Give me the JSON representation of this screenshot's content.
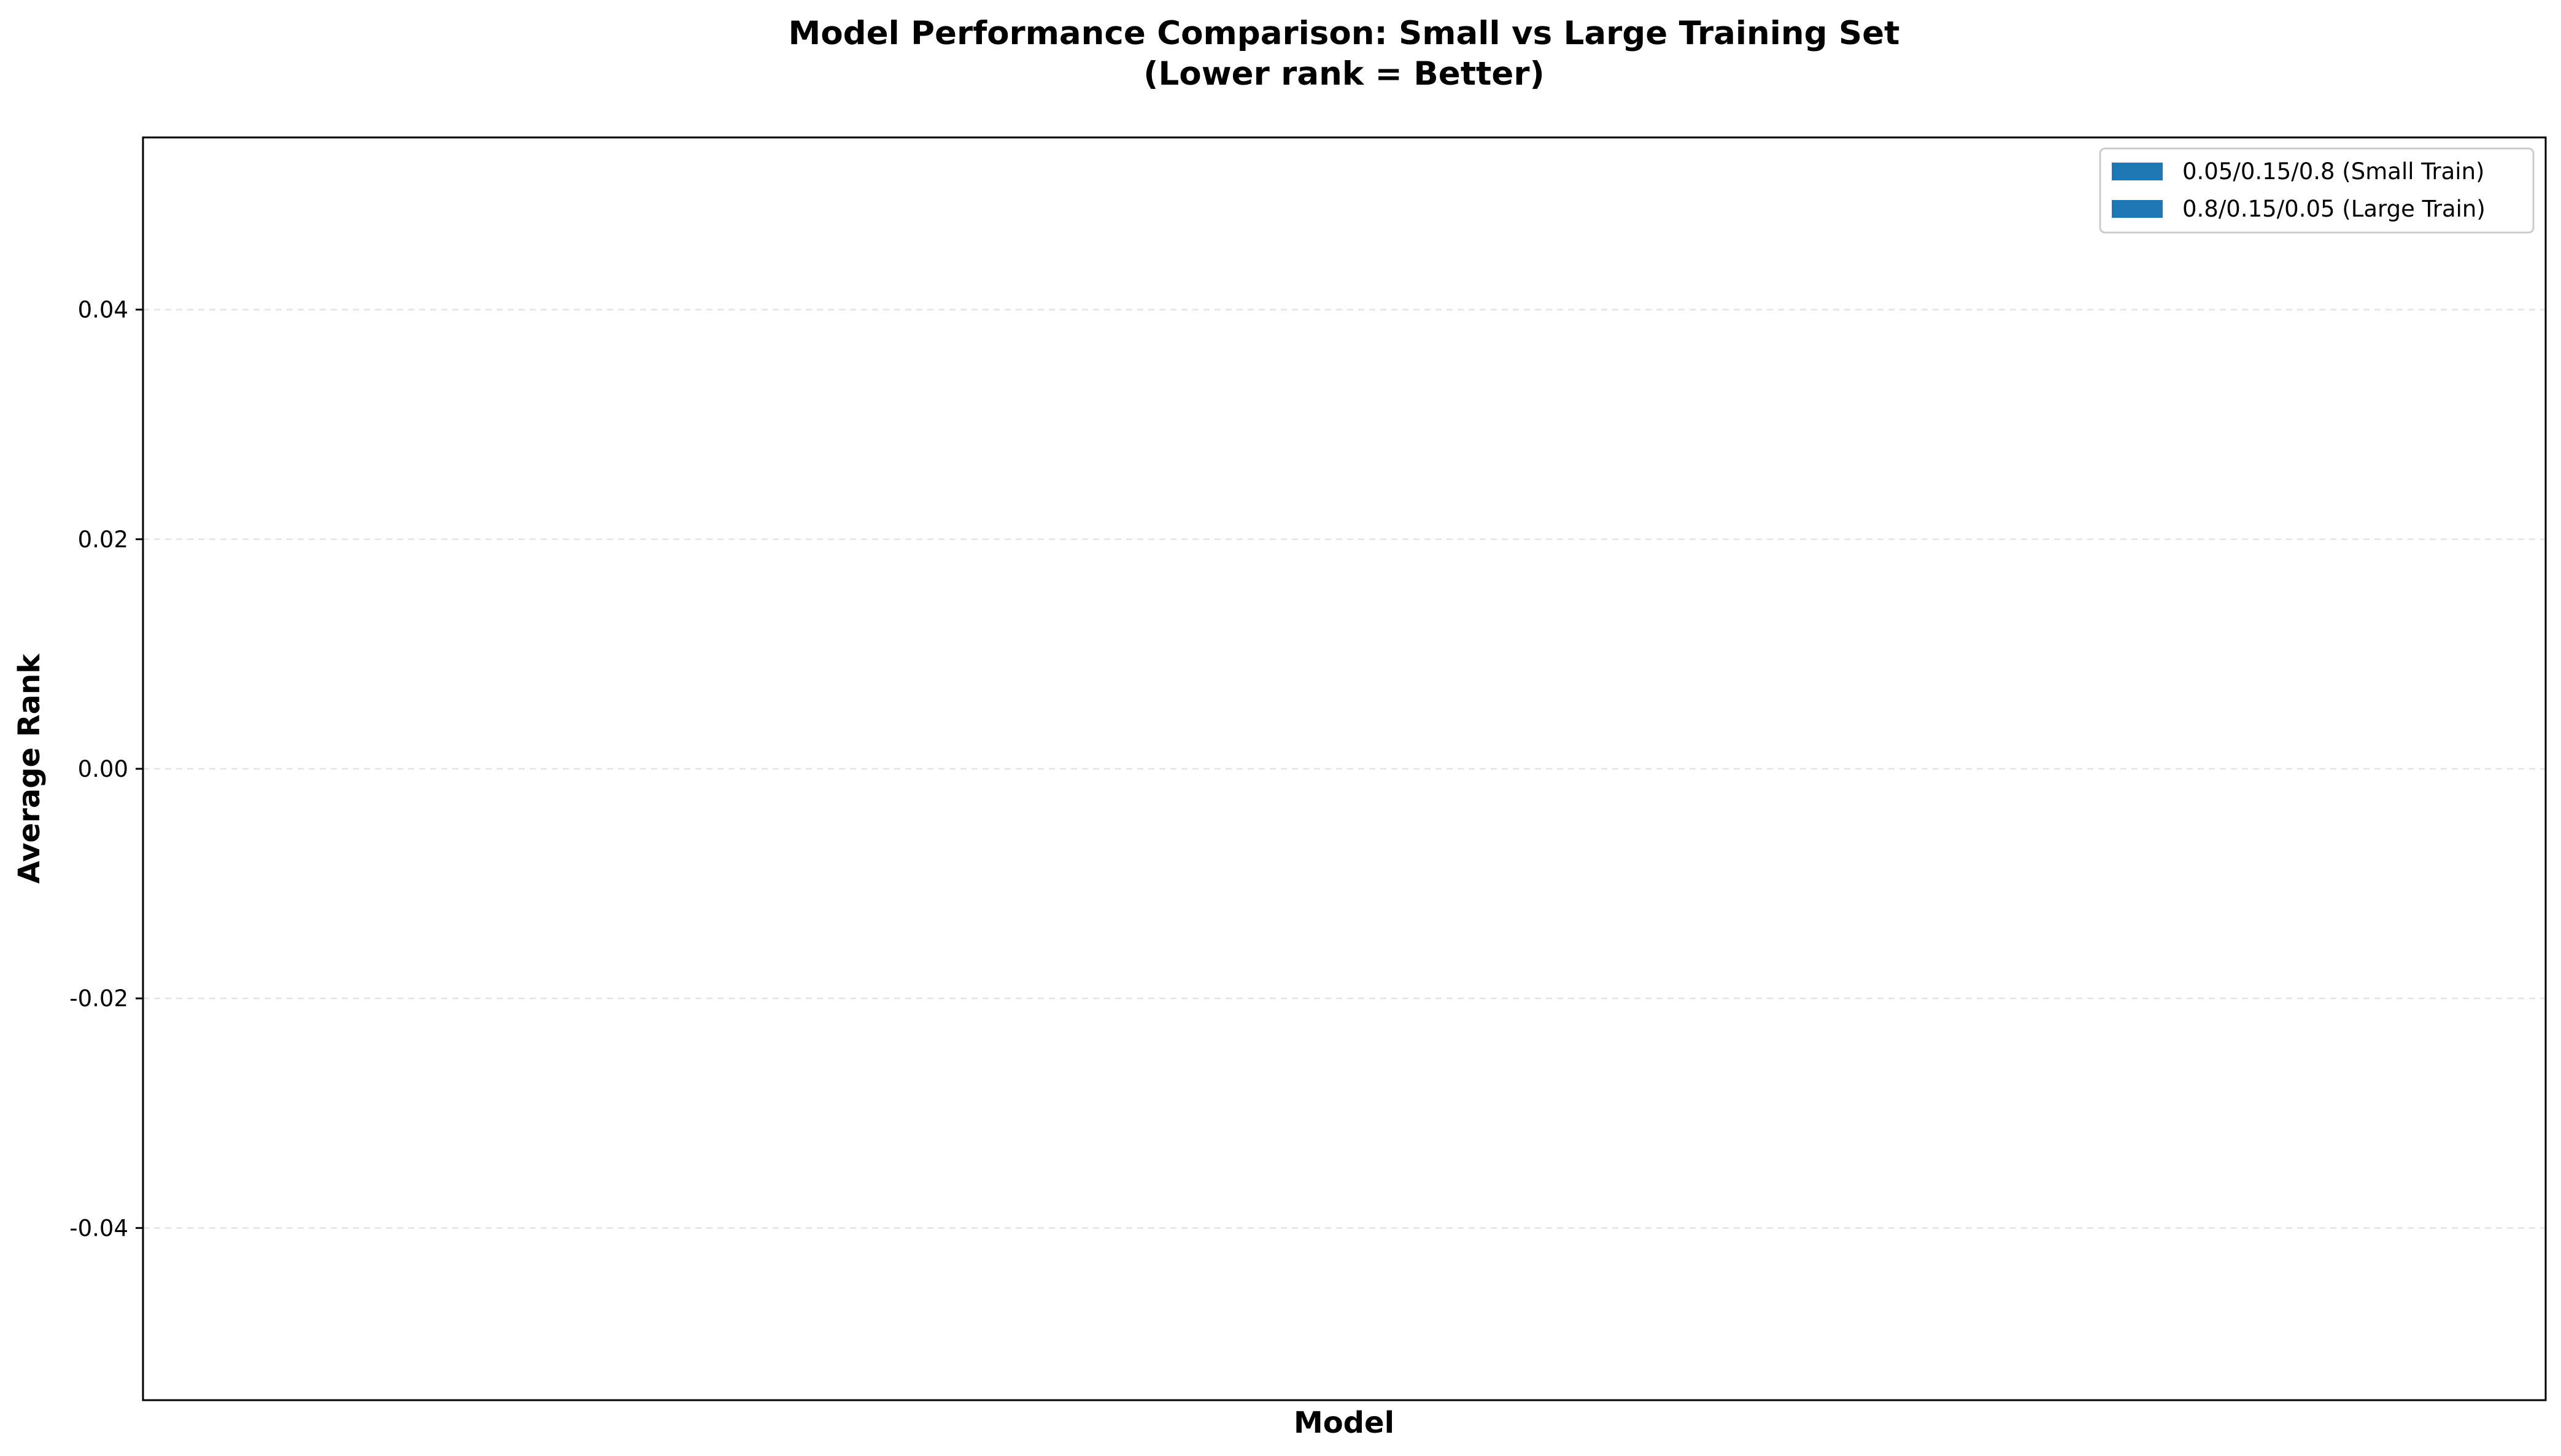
{
  "chart_data": {
    "type": "bar",
    "title": "Model Performance Comparison: Small vs Large Training Set",
    "subtitle": "(Lower rank = Better)",
    "xlabel": "Model",
    "ylabel": "Average Rank",
    "categories": [],
    "series": [
      {
        "name": "0.05/0.15/0.8 (Small Train)",
        "values": [],
        "color": "#1f77b4"
      },
      {
        "name": "0.8/0.15/0.05 (Large Train)",
        "values": [],
        "color": "#1f77b4"
      }
    ],
    "ylim": [
      -0.055,
      0.055
    ],
    "yticks": [
      0.04,
      0.02,
      0.0,
      -0.02,
      -0.04
    ],
    "ytick_labels": [
      "0.04",
      "0.02",
      "0.00",
      "-0.02",
      "-0.04"
    ],
    "grid": "y-dashed",
    "legend_position": "top-right"
  }
}
